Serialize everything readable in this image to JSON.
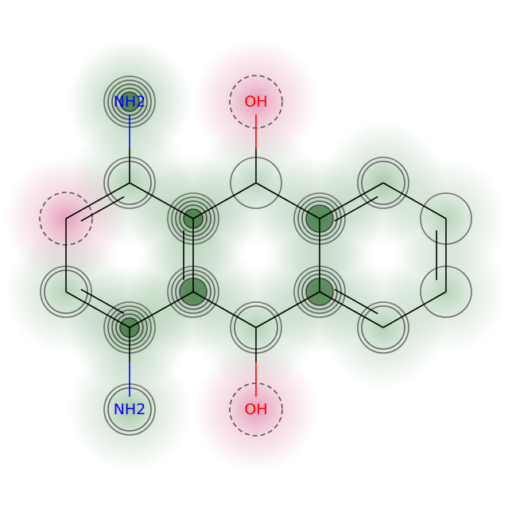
{
  "molecule": {
    "atoms": [
      {
        "id": "n1",
        "label": "NH2",
        "color": "#0000ff",
        "weight": 0.9
      },
      {
        "id": "c1",
        "label": "",
        "weight": 0.35
      },
      {
        "id": "c2",
        "label": "",
        "weight": -0.45
      },
      {
        "id": "c3",
        "label": "",
        "weight": 0.3
      },
      {
        "id": "c4",
        "label": "",
        "weight": 1.0
      },
      {
        "id": "n2",
        "label": "NH2",
        "color": "#0000ff",
        "weight": 0.45
      },
      {
        "id": "c5",
        "label": "",
        "weight": 0.7
      },
      {
        "id": "c6",
        "label": "",
        "weight": 1.0
      },
      {
        "id": "c7",
        "label": "",
        "weight": 0.2
      },
      {
        "id": "o1",
        "label": "OH",
        "color": "#ff0000",
        "weight": -0.5
      },
      {
        "id": "c8",
        "label": "",
        "weight": 0.3
      },
      {
        "id": "o2",
        "label": "OH",
        "color": "#ff0000",
        "weight": -0.5
      },
      {
        "id": "c9",
        "label": "",
        "weight": 0.75
      },
      {
        "id": "c10",
        "label": "",
        "weight": 0.7
      },
      {
        "id": "c11",
        "label": "",
        "weight": 0.45
      },
      {
        "id": "c12",
        "label": "",
        "weight": 0.25
      },
      {
        "id": "c13",
        "label": "",
        "weight": 0.25
      },
      {
        "id": "c14",
        "label": "",
        "weight": 0.3
      }
    ],
    "bonds": [
      [
        "n1",
        "c1",
        1
      ],
      [
        "c1",
        "c2",
        2
      ],
      [
        "c2",
        "c3",
        1
      ],
      [
        "c3",
        "c4",
        2
      ],
      [
        "c4",
        "n2",
        1
      ],
      [
        "c4",
        "c5",
        1
      ],
      [
        "c5",
        "c6",
        2
      ],
      [
        "c6",
        "c1",
        1
      ],
      [
        "c6",
        "c7",
        1
      ],
      [
        "c7",
        "o1",
        1
      ],
      [
        "c7",
        "c9",
        1
      ],
      [
        "c9",
        "c10",
        1
      ],
      [
        "c10",
        "c8",
        1
      ],
      [
        "c8",
        "o2",
        1
      ],
      [
        "c8",
        "c5",
        1
      ],
      [
        "c9",
        "c11",
        2
      ],
      [
        "c11",
        "c12",
        1
      ],
      [
        "c12",
        "c13",
        2
      ],
      [
        "c13",
        "c14",
        1
      ],
      [
        "c14",
        "c10",
        2
      ]
    ]
  },
  "colors": {
    "positive": "#2e7d32",
    "negative": "#c2185b",
    "bond": "#000000",
    "contour": "#4a4a4a"
  }
}
